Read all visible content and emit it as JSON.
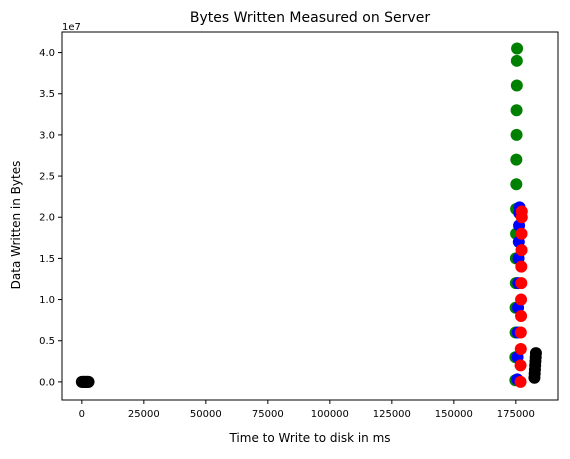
{
  "chart_data": {
    "type": "scatter",
    "title": "Bytes Written Measured on Server",
    "xlabel": "Time to Write to disk in ms",
    "ylabel": "Data Written in Bytes",
    "y_offset_label": "1e7",
    "xlim": [
      -8000,
      192000
    ],
    "ylim": [
      -2200000,
      42500000
    ],
    "x_ticks": [
      0,
      25000,
      50000,
      75000,
      100000,
      125000,
      150000,
      175000
    ],
    "x_tick_labels": [
      "0",
      "25000",
      "50000",
      "75000",
      "100000",
      "125000",
      "150000",
      "175000"
    ],
    "y_ticks": [
      0,
      5000000,
      10000000,
      15000000,
      20000000,
      25000000,
      30000000,
      35000000,
      40000000
    ],
    "y_tick_labels": [
      "0.0",
      "0.5",
      "1.0",
      "1.5",
      "2.0",
      "2.5",
      "3.0",
      "3.5",
      "4.0"
    ],
    "grid": false,
    "series": [
      {
        "name": "black-low",
        "color": "#000000",
        "points": [
          [
            0,
            0
          ],
          [
            300,
            0
          ],
          [
            600,
            0
          ],
          [
            900,
            0
          ],
          [
            1200,
            0
          ],
          [
            1500,
            0
          ],
          [
            1800,
            0
          ],
          [
            2100,
            0
          ],
          [
            2400,
            0
          ],
          [
            2700,
            0
          ]
        ]
      },
      {
        "name": "green",
        "color": "#008000",
        "points": [
          [
            174800,
            200000
          ],
          [
            174800,
            3000000
          ],
          [
            174900,
            6000000
          ],
          [
            174900,
            9000000
          ],
          [
            175000,
            12000000
          ],
          [
            175000,
            15000000
          ],
          [
            175100,
            18000000
          ],
          [
            175100,
            21000000
          ],
          [
            175200,
            24000000
          ],
          [
            175200,
            27000000
          ],
          [
            175300,
            30000000
          ],
          [
            175300,
            33000000
          ],
          [
            175400,
            36000000
          ],
          [
            175400,
            39000000
          ],
          [
            175500,
            40500000
          ]
        ]
      },
      {
        "name": "blue",
        "color": "#0000ff",
        "points": [
          [
            175600,
            300000
          ],
          [
            175700,
            3000000
          ],
          [
            175800,
            6000000
          ],
          [
            175900,
            9000000
          ],
          [
            176000,
            12000000
          ],
          [
            176100,
            15000000
          ],
          [
            176200,
            17000000
          ],
          [
            176300,
            19000000
          ],
          [
            176400,
            20500000
          ],
          [
            176500,
            21200000
          ]
        ]
      },
      {
        "name": "red",
        "color": "#ff0000",
        "points": [
          [
            176900,
            0
          ],
          [
            176900,
            2000000
          ],
          [
            177000,
            4000000
          ],
          [
            177000,
            6000000
          ],
          [
            177100,
            8000000
          ],
          [
            177100,
            10000000
          ],
          [
            177200,
            12000000
          ],
          [
            177200,
            14000000
          ],
          [
            177300,
            16000000
          ],
          [
            177300,
            18000000
          ],
          [
            177400,
            20000000
          ],
          [
            177400,
            20700000
          ]
        ]
      },
      {
        "name": "black-high",
        "color": "#000000",
        "points": [
          [
            182500,
            500000
          ],
          [
            182600,
            1000000
          ],
          [
            182700,
            1500000
          ],
          [
            182800,
            2000000
          ],
          [
            182900,
            2500000
          ],
          [
            183000,
            3000000
          ],
          [
            183100,
            3500000
          ]
        ]
      }
    ]
  }
}
